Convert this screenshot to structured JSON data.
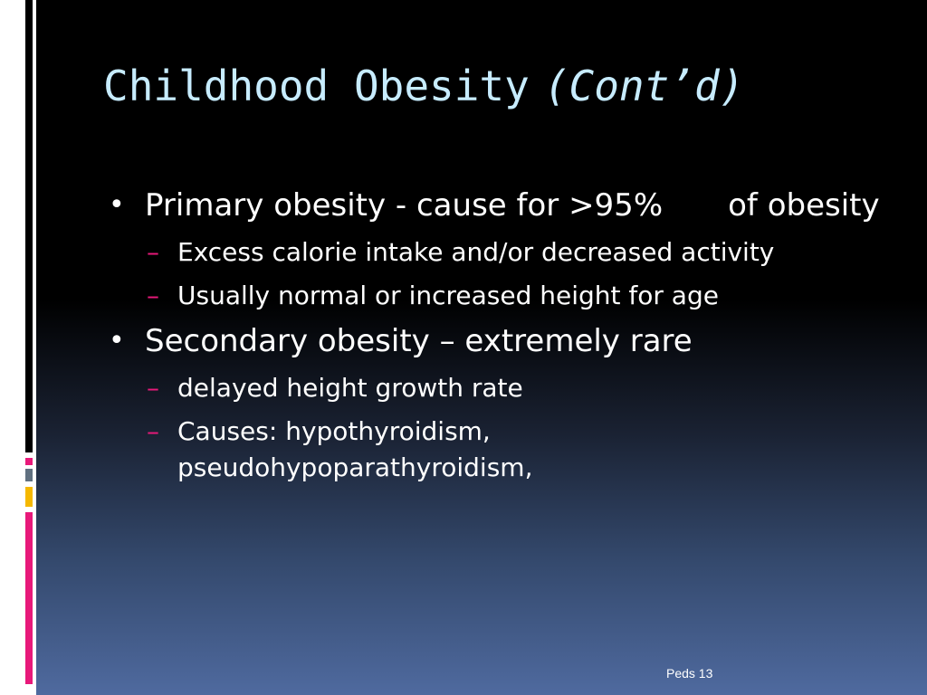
{
  "title": {
    "main": "Childhood Obesity",
    "suffix": "(Cont’d)"
  },
  "bullets": [
    {
      "text_a": "Primary obesity - cause for >95%",
      "text_b": "of obesity"
    },
    {
      "text": "Secondary obesity – extremely rare"
    }
  ],
  "sub_bullets_primary": [
    "Excess calorie intake and/or decreased activity",
    "Usually normal or increased height for age"
  ],
  "sub_bullets_secondary": [
    "delayed height growth rate",
    "Causes: hypothyroidism, pseudohypoparathyroidism,"
  ],
  "bullet_glyph": "•",
  "dash_glyph": "–",
  "footer": "Peds 13",
  "colors": {
    "title": "#c7ecff",
    "accent_pink": "#e8197a",
    "accent_gold": "#f5b800"
  }
}
